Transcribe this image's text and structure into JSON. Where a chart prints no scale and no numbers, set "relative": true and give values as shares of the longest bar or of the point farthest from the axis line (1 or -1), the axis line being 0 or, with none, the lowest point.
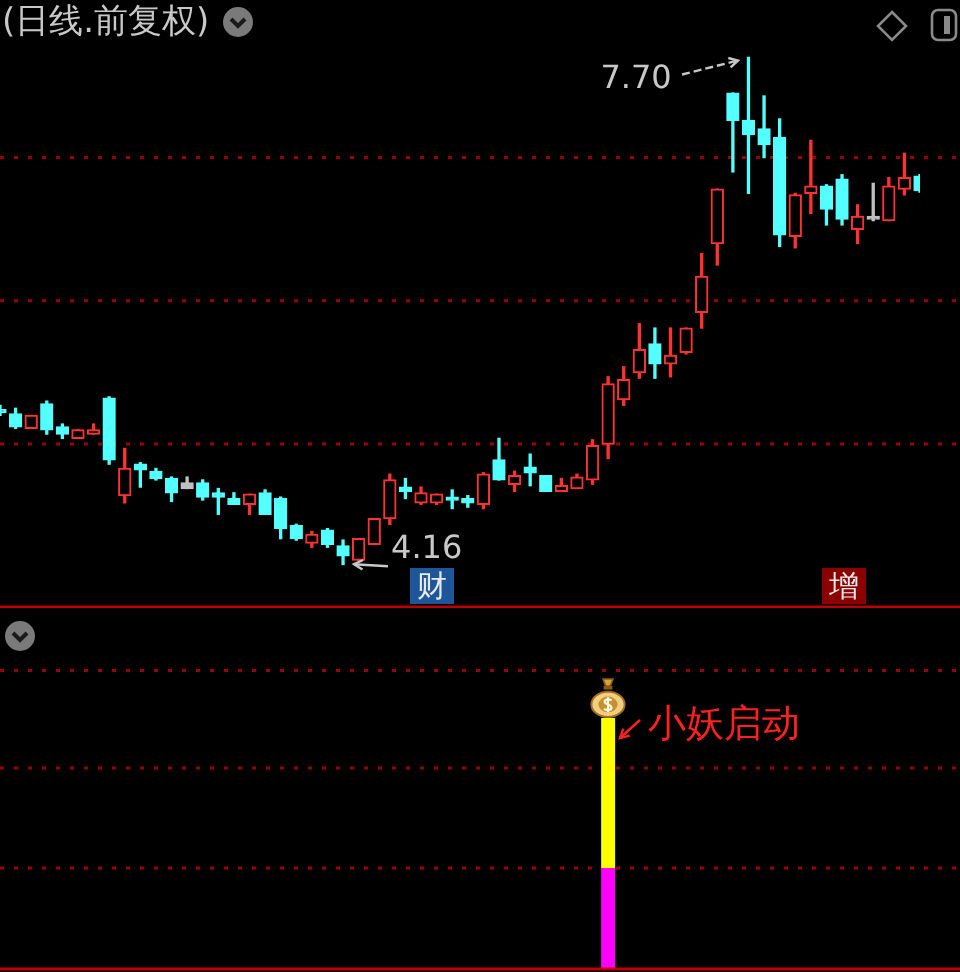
{
  "chart_data": [
    {
      "type": "candlestick",
      "title": "(日线.前复权)",
      "categories": [
        null,
        null,
        null,
        null,
        null,
        null,
        null,
        null,
        null,
        null,
        null,
        null,
        null,
        null,
        null,
        null,
        null,
        null,
        null,
        null,
        null,
        null,
        null,
        null,
        null,
        null,
        null,
        null,
        null,
        null,
        null,
        null,
        null,
        null,
        null,
        null,
        null,
        null,
        null,
        null,
        null,
        null,
        null,
        null,
        null,
        null,
        null,
        null,
        null,
        null,
        null,
        null,
        null,
        null,
        null,
        null,
        null,
        null,
        null,
        null
      ],
      "ohlc": [
        [
          5.24,
          5.27,
          5.2,
          5.22
        ],
        [
          5.21,
          5.25,
          5.11,
          5.12
        ],
        [
          5.11,
          5.2,
          5.11,
          5.2
        ],
        [
          5.28,
          5.3,
          5.07,
          5.1
        ],
        [
          5.12,
          5.14,
          5.04,
          5.07
        ],
        [
          5.04,
          5.1,
          5.04,
          5.1
        ],
        [
          5.07,
          5.14,
          5.07,
          5.1
        ],
        [
          5.32,
          5.33,
          4.86,
          4.89
        ],
        [
          4.64,
          4.97,
          4.59,
          4.83
        ],
        [
          4.86,
          4.87,
          4.7,
          4.82
        ],
        [
          4.81,
          4.83,
          4.75,
          4.76
        ],
        [
          4.76,
          4.77,
          4.6,
          4.66
        ],
        [
          4.73,
          4.77,
          4.69,
          4.69
        ],
        [
          4.73,
          4.75,
          4.61,
          4.63
        ],
        [
          4.66,
          4.69,
          4.51,
          4.63
        ],
        [
          4.62,
          4.66,
          4.58,
          4.58
        ],
        [
          4.58,
          4.65,
          4.51,
          4.65
        ],
        [
          4.66,
          4.68,
          4.51,
          4.51
        ],
        [
          4.62,
          4.63,
          4.34,
          4.41
        ],
        [
          4.43,
          4.44,
          4.33,
          4.34
        ],
        [
          4.31,
          4.39,
          4.28,
          4.37
        ],
        [
          4.4,
          4.41,
          4.28,
          4.3
        ],
        [
          4.29,
          4.33,
          4.16,
          4.22
        ],
        [
          4.19,
          4.34,
          4.19,
          4.34
        ],
        [
          4.3,
          4.48,
          4.3,
          4.48
        ],
        [
          4.48,
          4.79,
          4.44,
          4.75
        ],
        [
          4.7,
          4.76,
          4.62,
          4.67
        ],
        [
          4.59,
          4.7,
          4.58,
          4.66
        ],
        [
          4.59,
          4.65,
          4.58,
          4.65
        ],
        [
          4.63,
          4.68,
          4.55,
          4.61
        ],
        [
          4.62,
          4.64,
          4.56,
          4.59
        ],
        [
          4.58,
          4.8,
          4.55,
          4.79
        ],
        [
          4.89,
          5.04,
          4.75,
          4.75
        ],
        [
          4.72,
          4.81,
          4.67,
          4.78
        ],
        [
          4.84,
          4.93,
          4.71,
          4.8
        ],
        [
          4.78,
          4.78,
          4.67,
          4.67
        ],
        [
          4.67,
          4.76,
          4.67,
          4.71
        ],
        [
          4.69,
          4.79,
          4.69,
          4.77
        ],
        [
          4.75,
          5.03,
          4.72,
          4.99
        ],
        [
          5.0,
          5.47,
          4.9,
          5.42
        ],
        [
          5.31,
          5.54,
          5.27,
          5.45
        ],
        [
          5.5,
          5.84,
          5.46,
          5.66
        ],
        [
          5.7,
          5.81,
          5.46,
          5.56
        ],
        [
          5.56,
          5.81,
          5.47,
          5.62
        ],
        [
          5.64,
          5.81,
          5.63,
          5.81
        ],
        [
          5.92,
          6.33,
          5.81,
          6.17
        ],
        [
          6.4,
          6.78,
          6.25,
          6.78
        ],
        [
          7.45,
          7.45,
          6.9,
          7.26
        ],
        [
          7.26,
          7.7,
          6.75,
          7.16
        ],
        [
          7.2,
          7.43,
          7.0,
          7.09
        ],
        [
          7.14,
          7.27,
          6.38,
          6.46
        ],
        [
          6.45,
          6.75,
          6.37,
          6.74
        ],
        [
          6.75,
          7.12,
          6.61,
          6.8
        ],
        [
          6.8,
          6.81,
          6.53,
          6.64
        ],
        [
          6.85,
          6.88,
          6.53,
          6.57
        ],
        [
          6.5,
          6.67,
          6.4,
          6.59
        ],
        [
          6.59,
          6.82,
          6.56,
          6.57
        ],
        [
          6.56,
          6.86,
          6.56,
          6.8
        ],
        [
          6.78,
          7.03,
          6.74,
          6.86
        ],
        [
          6.87,
          6.88,
          6.76,
          6.77
        ]
      ],
      "colors": [
        "#54ffff",
        "#54ffff",
        "#ff3232",
        "#54ffff",
        "#54ffff",
        "#ff3232",
        "#ff3232",
        "#54ffff",
        "#ff3232",
        "#54ffff",
        "#54ffff",
        "#54ffff",
        "#c0c0c0",
        "#54ffff",
        "#54ffff",
        "#54ffff",
        "#ff3232",
        "#54ffff",
        "#54ffff",
        "#54ffff",
        "#ff3232",
        "#54ffff",
        "#54ffff",
        "#ff3232",
        "#ff3232",
        "#ff3232",
        "#54ffff",
        "#ff3232",
        "#ff3232",
        "#54ffff",
        "#54ffff",
        "#ff3232",
        "#54ffff",
        "#ff3232",
        "#54ffff",
        "#54ffff",
        "#ff3232",
        "#ff3232",
        "#ff3232",
        "#ff3232",
        "#ff3232",
        "#ff3232",
        "#54ffff",
        "#ff3232",
        "#ff3232",
        "#ff3232",
        "#ff3232",
        "#54ffff",
        "#54ffff",
        "#54ffff",
        "#54ffff",
        "#ff3232",
        "#ff3232",
        "#54ffff",
        "#54ffff",
        "#ff3232",
        "#c0c0c0",
        "#ff3232",
        "#ff3232",
        "#54ffff"
      ],
      "ylim": [
        3.87,
        8.1
      ],
      "yticks": [
        {
          "value": 5,
          "label": null
        },
        {
          "value": 6,
          "label": null
        },
        {
          "value": 7,
          "label": null
        }
      ],
      "grid": "y",
      "tick_labels": false,
      "annotations": [
        "7.70",
        "4.16",
        "财",
        "增"
      ]
    },
    {
      "type": "bar",
      "categories": [
        null,
        null,
        null,
        null,
        null,
        null,
        null,
        null,
        null,
        null,
        null,
        null,
        null,
        null,
        null,
        null,
        null,
        null,
        null,
        null,
        null,
        null,
        null,
        null,
        null,
        null,
        null,
        null,
        null,
        null,
        null,
        null,
        null,
        null,
        null,
        null,
        null,
        null,
        null,
        null,
        null,
        null,
        null,
        null,
        null,
        null,
        null,
        null,
        null,
        null,
        null,
        null,
        null,
        null,
        null,
        null,
        null,
        null,
        null,
        null
      ],
      "series": [
        {
          "color": "#ff00ff",
          "values": [
            null,
            null,
            null,
            null,
            null,
            null,
            null,
            null,
            null,
            null,
            null,
            null,
            null,
            null,
            null,
            null,
            null,
            null,
            null,
            null,
            null,
            null,
            null,
            null,
            null,
            null,
            null,
            null,
            null,
            null,
            null,
            null,
            null,
            null,
            null,
            null,
            null,
            null,
            null,
            0.4,
            null,
            null,
            null,
            null,
            null,
            null,
            null,
            null,
            null,
            null,
            null,
            null,
            null,
            null,
            null,
            null,
            null,
            null,
            null,
            null
          ]
        },
        {
          "color": "#ffff00",
          "values": [
            null,
            null,
            null,
            null,
            null,
            null,
            null,
            null,
            null,
            null,
            null,
            null,
            null,
            null,
            null,
            null,
            null,
            null,
            null,
            null,
            null,
            null,
            null,
            null,
            null,
            null,
            null,
            null,
            null,
            null,
            null,
            null,
            null,
            null,
            null,
            null,
            null,
            null,
            null,
            0.6,
            null,
            null,
            null,
            null,
            null,
            null,
            null,
            null,
            null,
            null,
            null,
            null,
            null,
            null,
            null,
            null,
            null,
            null,
            null,
            null
          ]
        }
      ],
      "stacked": true,
      "relative": true,
      "tick_labels": false,
      "ref_lines": [
        {
          "axis": "y",
          "value": 0.4,
          "color": "#9a0000",
          "line_style": "dotted"
        },
        {
          "axis": "y",
          "value": 0.8,
          "color": "#9a0000",
          "line_style": "dotted"
        },
        {
          "axis": "y",
          "value": 1.19,
          "color": "#9a0000",
          "line_style": "dotted"
        }
      ],
      "annotations": [
        "小妖启动"
      ]
    }
  ]
}
